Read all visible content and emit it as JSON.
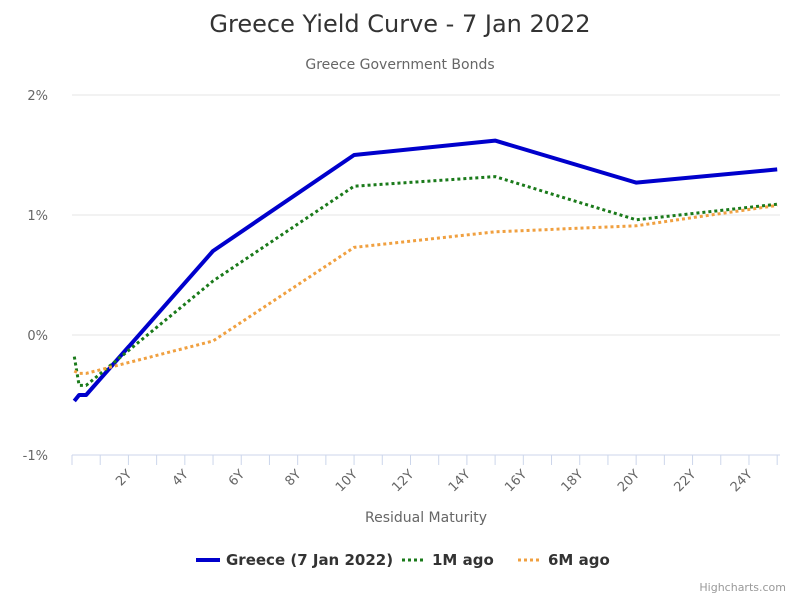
{
  "credits": "Highcharts.com",
  "chart_data": {
    "type": "line",
    "title": "Greece Yield Curve - 7 Jan 2022",
    "subtitle": "Greece Government Bonds",
    "xlabel": "Residual Maturity",
    "ylabel": "",
    "xlim": [
      0,
      25.1
    ],
    "ylim": [
      -1,
      2
    ],
    "x_ticks": [
      2,
      4,
      6,
      8,
      10,
      12,
      14,
      16,
      18,
      20,
      22,
      24
    ],
    "x_tick_labels": [
      "2Y",
      "4Y",
      "6Y",
      "8Y",
      "10Y",
      "12Y",
      "14Y",
      "16Y",
      "18Y",
      "20Y",
      "22Y",
      "24Y"
    ],
    "y_ticks": [
      -1,
      0,
      1,
      2
    ],
    "y_tick_labels": [
      "-1%",
      "0%",
      "1%",
      "2%"
    ],
    "grid": "horizontal",
    "legend_position": "bottom-center",
    "series": [
      {
        "name": "Greece (7 Jan 2022)",
        "color": "#0000cc",
        "style": "solid",
        "points": [
          [
            0.08,
            -0.55
          ],
          [
            0.25,
            -0.5
          ],
          [
            0.5,
            -0.5
          ],
          [
            5,
            0.7
          ],
          [
            10,
            1.5
          ],
          [
            15,
            1.62
          ],
          [
            20,
            1.27
          ],
          [
            25,
            1.38
          ]
        ]
      },
      {
        "name": "1M ago",
        "color": "#1a7a1a",
        "style": "dotted",
        "points": [
          [
            0.08,
            -0.18
          ],
          [
            0.25,
            -0.42
          ],
          [
            0.5,
            -0.42
          ],
          [
            5,
            0.45
          ],
          [
            10,
            1.24
          ],
          [
            15,
            1.32
          ],
          [
            20,
            0.96
          ],
          [
            25,
            1.09
          ]
        ]
      },
      {
        "name": "6M ago",
        "color": "#f0a040",
        "style": "dotted",
        "points": [
          [
            0.08,
            -0.3
          ],
          [
            0.25,
            -0.32
          ],
          [
            0.5,
            -0.32
          ],
          [
            5,
            -0.05
          ],
          [
            10,
            0.73
          ],
          [
            15,
            0.86
          ],
          [
            20,
            0.91
          ],
          [
            25,
            1.08
          ]
        ]
      }
    ]
  }
}
